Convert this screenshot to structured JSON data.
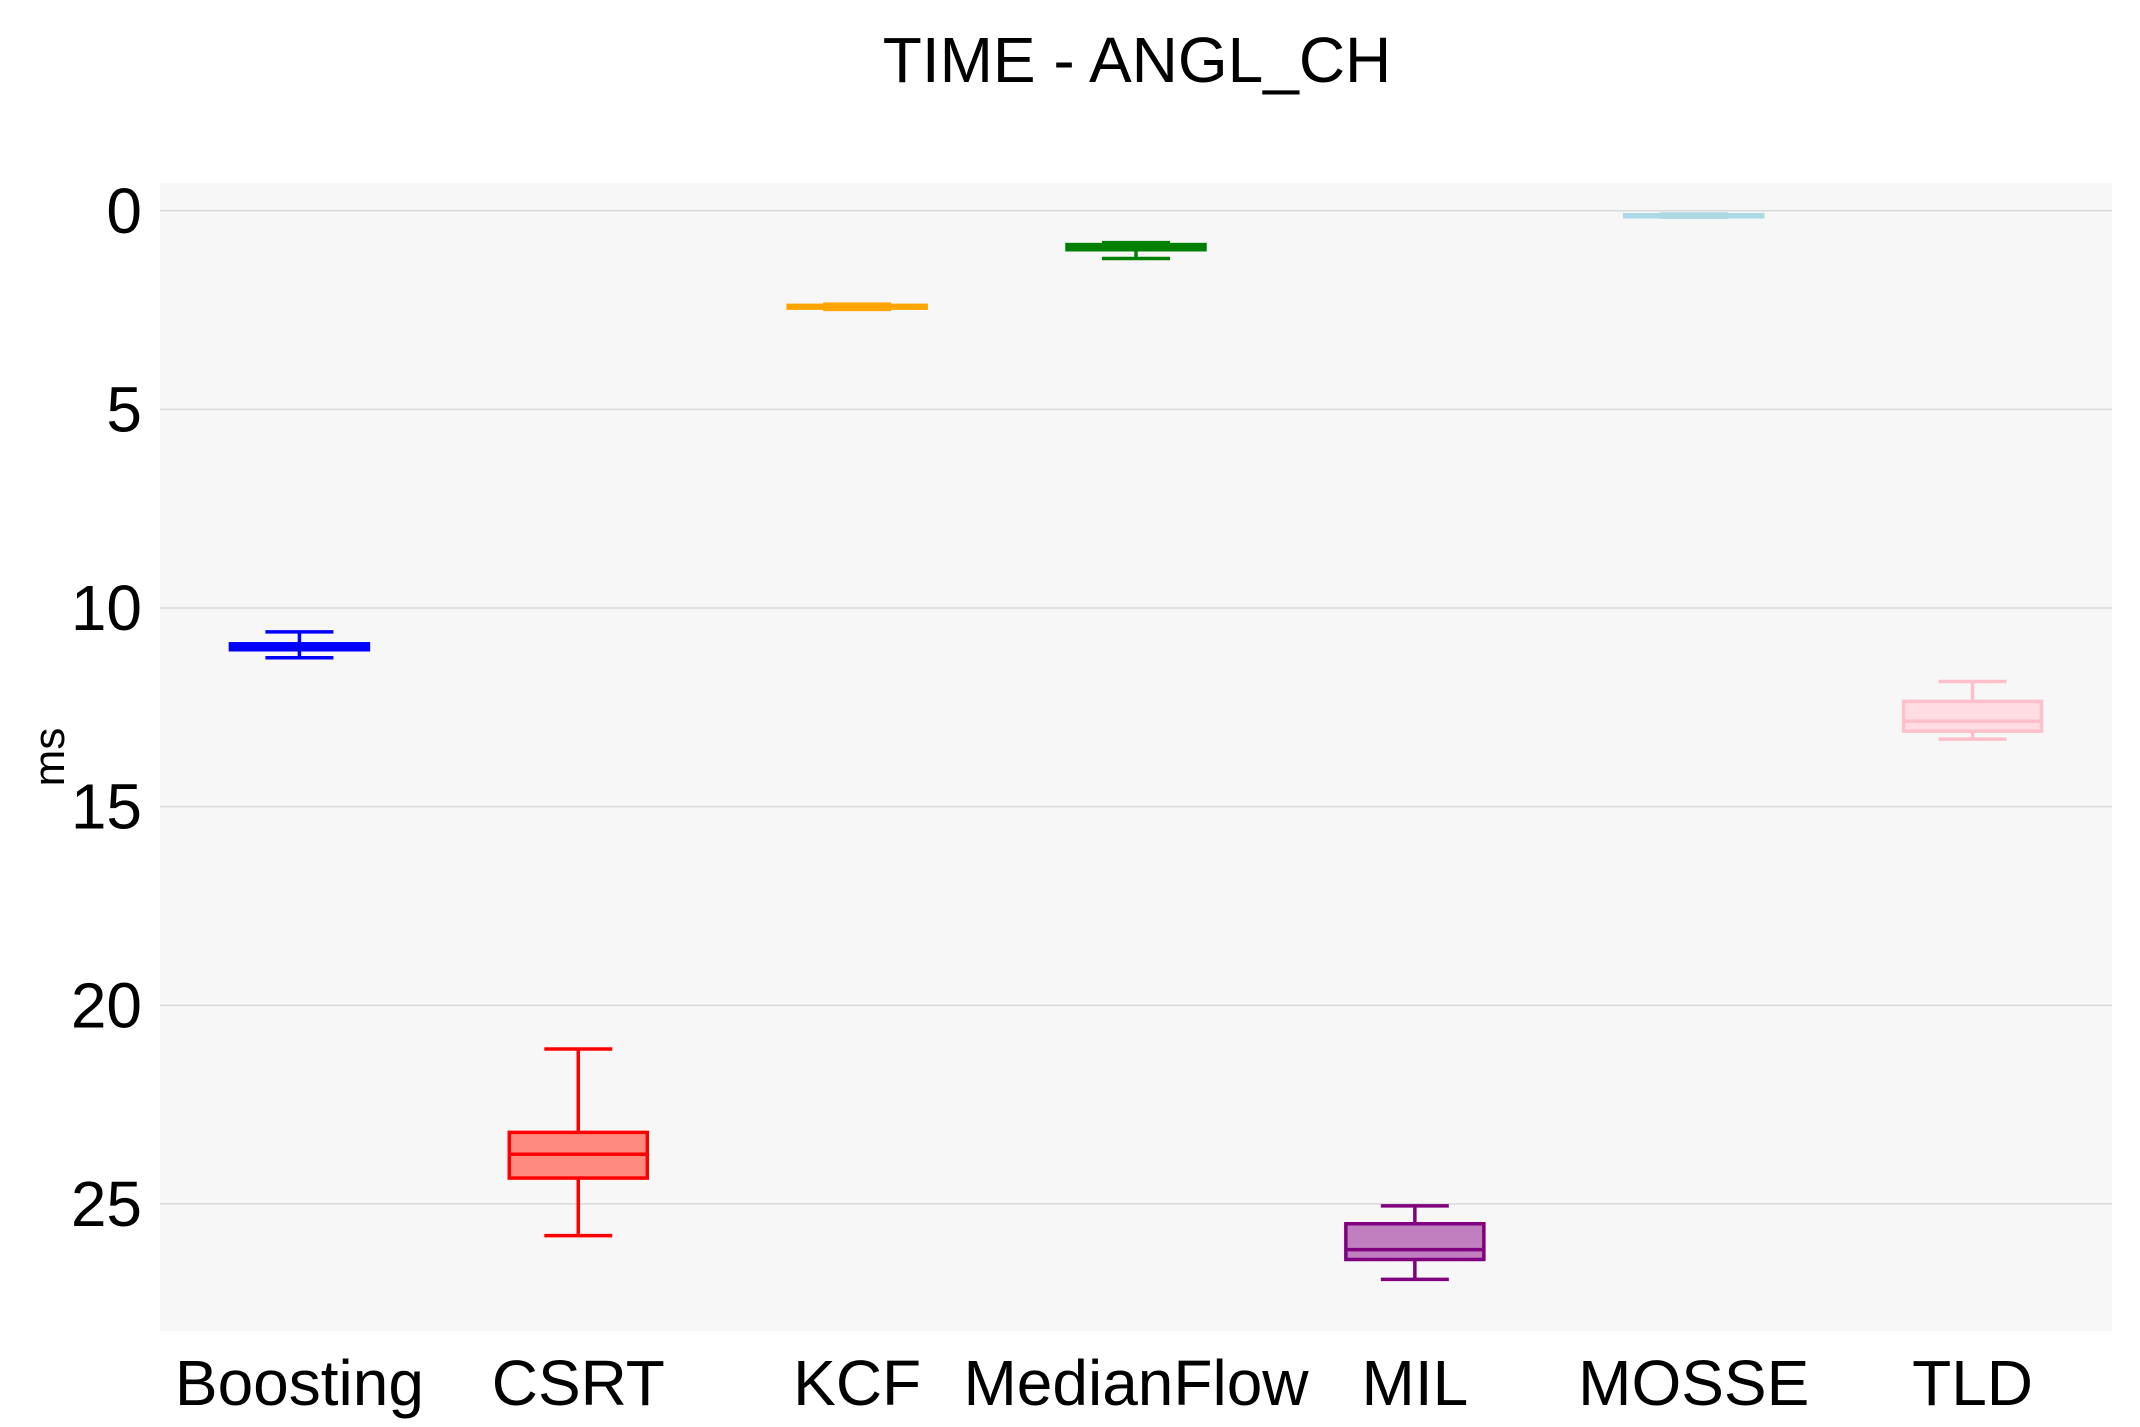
{
  "chart_data": {
    "type": "box",
    "title": "TIME - ANGL_CH",
    "xlabel": "",
    "ylabel": "ms",
    "y_axis_reversed": true,
    "ylim": [
      -0.7,
      28.2
    ],
    "yticks": [
      0,
      5,
      10,
      15,
      20,
      25
    ],
    "grid": true,
    "legend": "none",
    "categories": [
      "Boosting",
      "CSRT",
      "KCF",
      "MedianFlow",
      "MIL",
      "MOSSE",
      "TLD"
    ],
    "series": [
      {
        "whisker_low": 10.6,
        "q1": 10.9,
        "median": 11.0,
        "q3": 11.05,
        "whisker_high": 11.25,
        "color": "#0000ff",
        "fill": "#0000ff"
      },
      {
        "whisker_low": 21.1,
        "q1": 23.2,
        "median": 23.75,
        "q3": 24.35,
        "whisker_high": 25.8,
        "color": "#ff0000",
        "fill": "#ff8a80"
      },
      {
        "whisker_low": 2.35,
        "q1": 2.38,
        "median": 2.4,
        "q3": 2.45,
        "whisker_high": 2.48,
        "color": "#ffa500",
        "fill": "#ffa500"
      },
      {
        "whisker_low": 0.8,
        "q1": 0.85,
        "median": 0.92,
        "q3": 0.98,
        "whisker_high": 1.2,
        "color": "#008000",
        "fill": "#008000"
      },
      {
        "whisker_low": 25.05,
        "q1": 25.5,
        "median": 26.15,
        "q3": 26.4,
        "whisker_high": 26.9,
        "color": "#800080",
        "fill": "#c080c0"
      },
      {
        "whisker_low": 0.08,
        "q1": 0.1,
        "median": 0.12,
        "q3": 0.14,
        "whisker_high": 0.16,
        "color": "#add8e6",
        "fill": "#add8e6"
      },
      {
        "whisker_low": 11.85,
        "q1": 12.35,
        "median": 12.85,
        "q3": 13.1,
        "whisker_high": 13.3,
        "color": "#ffc0cb",
        "fill": "#ffdde3"
      }
    ]
  }
}
